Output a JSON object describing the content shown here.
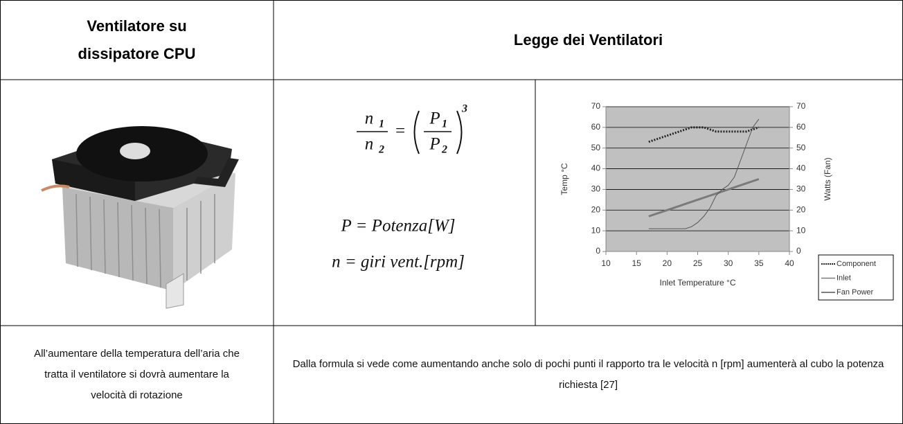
{
  "table": {
    "header": [
      "Ventilatore su dissipatore CPU",
      "Legge dei Ventilatori"
    ],
    "formula": {
      "lhs_num": "n",
      "lhs_num_sub": "1",
      "lhs_den": "n",
      "lhs_den_sub": "2",
      "equals": "=",
      "rhs_num": "P",
      "rhs_num_sub": "1",
      "rhs_den": "P",
      "rhs_den_sub": "2",
      "exponent": "3",
      "line1": "P = Potenza[W]",
      "line2": "n = giri vent.[rpm]"
    },
    "rows": [
      [
        "All’aumentare della temperatura dell’aria che tratta il ventilatore si dovrà aumentare la velocità di rotazione",
        "Dalla formula si vede come aumentando anche solo di pochi punti il rapporto tra le velocità n [rpm] aumenterà al cubo la potenza richiesta [27]"
      ]
    ]
  },
  "chart_data": {
    "type": "line",
    "xlabel": "Inlet Temperature °C",
    "ylabel": "Temp °C",
    "y2label": "Watts (Fan)",
    "x": [
      17,
      18,
      19,
      20,
      21,
      22,
      23,
      24,
      25,
      26,
      27,
      28,
      29,
      30,
      31,
      32,
      33,
      34,
      35
    ],
    "series": [
      {
        "name": "Component",
        "color": "#222222",
        "dashed": true,
        "values": [
          53,
          54,
          55,
          56,
          57,
          58,
          59,
          60,
          60,
          60,
          59,
          58,
          58,
          58,
          58,
          58,
          58,
          59,
          60
        ]
      },
      {
        "name": "Inlet",
        "color": "#7a7a7a",
        "width": 3,
        "values": [
          17,
          18,
          19,
          20,
          21,
          22,
          23,
          24,
          25,
          26,
          27,
          28,
          29,
          30,
          31,
          32,
          33,
          34,
          35
        ]
      },
      {
        "name": "Fan Power",
        "color": "#555555",
        "width": 1,
        "axis": "y2",
        "values": [
          11,
          11,
          11,
          11,
          11,
          11,
          11,
          12,
          14,
          17,
          21,
          27,
          30,
          32,
          36,
          44,
          52,
          60,
          64
        ]
      }
    ],
    "xlim": [
      10,
      40
    ],
    "xticks": [
      10,
      15,
      20,
      25,
      30,
      35,
      40
    ],
    "ylim": [
      0,
      70
    ],
    "yticks": [
      0,
      10,
      20,
      30,
      40,
      50,
      60,
      70
    ],
    "y2lim": [
      0,
      70
    ],
    "y2ticks": [
      0,
      10,
      20,
      30,
      40,
      50,
      60,
      70
    ],
    "grid": true,
    "legend": "right",
    "background": "#c0c0c0"
  }
}
